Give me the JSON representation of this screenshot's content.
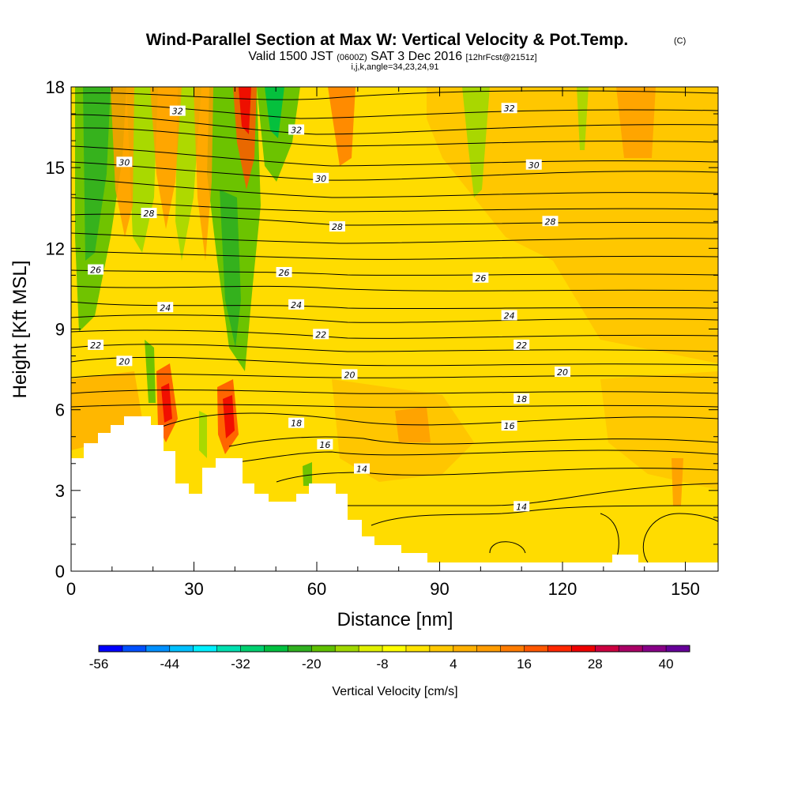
{
  "chart_data": {
    "type": "heatmap",
    "title_parts": {
      "main": "Wind-Parallel Section at Max W: Vertical Velocity & Pot.Temp.",
      "copyright": "(C)",
      "valid_a": "Valid 1500 JST",
      "valid_utc": "(0600Z)",
      "valid_b": "SAT 3 Dec 2016",
      "forecast": "[12hrFcst@2151z]",
      "indices": "i,j,k,angle=34,23,24,91"
    },
    "xlabel": "Distance [nm]",
    "ylabel": "Height [Kft MSL]",
    "xlim": [
      0,
      158
    ],
    "ylim": [
      0,
      18
    ],
    "x_ticks": [
      "0",
      "30",
      "60",
      "90",
      "120",
      "150"
    ],
    "x_tick_values": [
      0,
      30,
      60,
      90,
      120,
      150
    ],
    "y_ticks": [
      "0",
      "3",
      "6",
      "9",
      "12",
      "15",
      "18"
    ],
    "y_tick_values": [
      0,
      3,
      6,
      9,
      12,
      15,
      18
    ],
    "colorbar": {
      "label": "Vertical Velocity [cm/s]",
      "min": -56,
      "step": 4,
      "tick_labels": [
        "-56",
        "-44",
        "-32",
        "-20",
        "-8",
        "4",
        "16",
        "28",
        "40"
      ],
      "colors": [
        "#0000ff",
        "#0050ff",
        "#0090ff",
        "#00c0ff",
        "#00f0ff",
        "#00e0b0",
        "#00d070",
        "#00c040",
        "#30b020",
        "#60c000",
        "#a0d800",
        "#e0f000",
        "#ffff00",
        "#ffe400",
        "#ffc800",
        "#ffb000",
        "#ff9c00",
        "#ff7c00",
        "#ff5800",
        "#ff2800",
        "#ee0000",
        "#cc0040",
        "#aa0066",
        "#880088",
        "#660099"
      ]
    },
    "theta_contour_labels": [
      {
        "value": "32",
        "x": 26,
        "y": 17.1
      },
      {
        "value": "32",
        "x": 55,
        "y": 16.4
      },
      {
        "value": "32",
        "x": 107,
        "y": 17.2
      },
      {
        "value": "30",
        "x": 13,
        "y": 15.2
      },
      {
        "value": "30",
        "x": 61,
        "y": 14.6
      },
      {
        "value": "30",
        "x": 113,
        "y": 15.1
      },
      {
        "value": "28",
        "x": 19,
        "y": 13.3
      },
      {
        "value": "28",
        "x": 65,
        "y": 12.8
      },
      {
        "value": "28",
        "x": 117,
        "y": 13.0
      },
      {
        "value": "26",
        "x": 6,
        "y": 11.2
      },
      {
        "value": "26",
        "x": 52,
        "y": 11.1
      },
      {
        "value": "26",
        "x": 100,
        "y": 10.9
      },
      {
        "value": "24",
        "x": 23,
        "y": 9.8
      },
      {
        "value": "24",
        "x": 55,
        "y": 9.9
      },
      {
        "value": "24",
        "x": 107,
        "y": 9.5
      },
      {
        "value": "22",
        "x": 6,
        "y": 8.4
      },
      {
        "value": "22",
        "x": 61,
        "y": 8.8
      },
      {
        "value": "22",
        "x": 110,
        "y": 8.4
      },
      {
        "value": "20",
        "x": 13,
        "y": 7.8
      },
      {
        "value": "20",
        "x": 68,
        "y": 7.3
      },
      {
        "value": "20",
        "x": 120,
        "y": 7.4
      },
      {
        "value": "18",
        "x": 55,
        "y": 5.5
      },
      {
        "value": "18",
        "x": 110,
        "y": 6.4
      },
      {
        "value": "16",
        "x": 62,
        "y": 4.7
      },
      {
        "value": "16",
        "x": 107,
        "y": 5.4
      },
      {
        "value": "14",
        "x": 71,
        "y": 3.8
      },
      {
        "value": "14",
        "x": 110,
        "y": 2.4
      }
    ]
  }
}
